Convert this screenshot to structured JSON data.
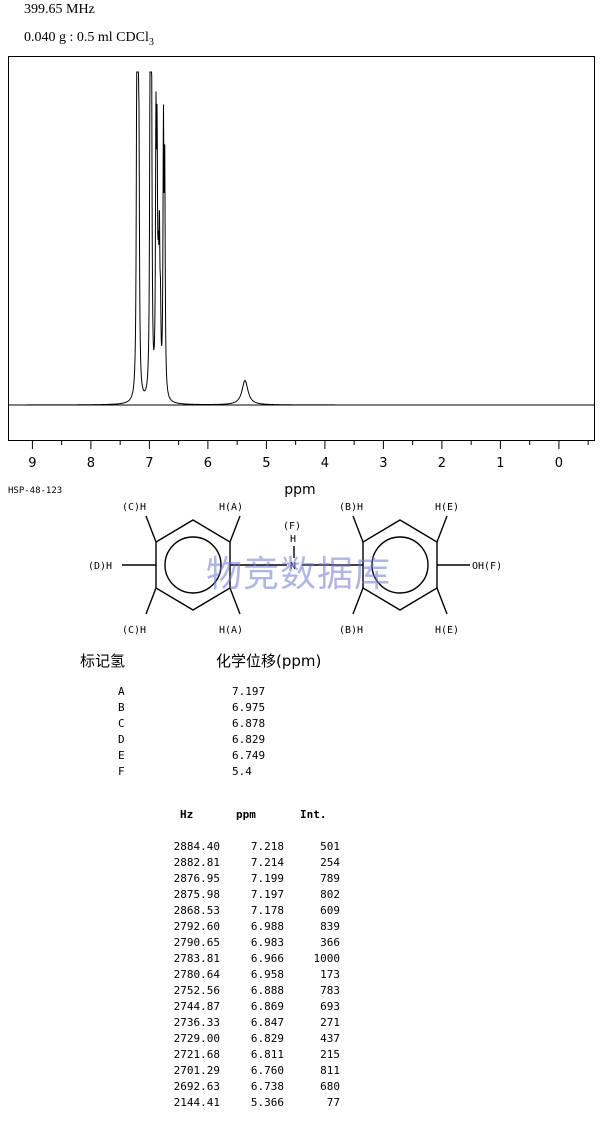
{
  "header": {
    "frequency": "399.65 MHz",
    "sample_main": "0.040 g : 0.5 ml CDCl",
    "sample_sub": "3"
  },
  "chart_data": {
    "type": "line",
    "xlabel": "ppm",
    "xlim": [
      9.4,
      -0.6
    ],
    "x_reversed": true,
    "x_ticks": [
      "9",
      "8",
      "7",
      "6",
      "5",
      "4",
      "3",
      "2",
      "1",
      "0"
    ],
    "peaks": [
      {
        "ppm": 7.218,
        "intensity": 501
      },
      {
        "ppm": 7.214,
        "intensity": 254
      },
      {
        "ppm": 7.199,
        "intensity": 789
      },
      {
        "ppm": 7.197,
        "intensity": 802
      },
      {
        "ppm": 7.178,
        "intensity": 609
      },
      {
        "ppm": 6.988,
        "intensity": 839
      },
      {
        "ppm": 6.983,
        "intensity": 366
      },
      {
        "ppm": 6.966,
        "intensity": 1000
      },
      {
        "ppm": 6.958,
        "intensity": 173
      },
      {
        "ppm": 6.888,
        "intensity": 783
      },
      {
        "ppm": 6.869,
        "intensity": 693
      },
      {
        "ppm": 6.847,
        "intensity": 271
      },
      {
        "ppm": 6.829,
        "intensity": 437
      },
      {
        "ppm": 6.811,
        "intensity": 215
      },
      {
        "ppm": 6.76,
        "intensity": 811
      },
      {
        "ppm": 6.738,
        "intensity": 680
      },
      {
        "ppm": 5.366,
        "intensity": 77
      }
    ]
  },
  "compound_code": "HSP-48-123",
  "structure": {
    "labels": {
      "c_top": "(C)H",
      "a_top": "H(A)",
      "d_left": "(D)H",
      "c_bottom": "(C)H",
      "a_bottom": "H(A)",
      "f_label": "(F)",
      "f_h": "H",
      "n": "N",
      "b_top": "(B)H",
      "e_top": "H(E)",
      "oh": "OH(F)",
      "b_bottom": "(B)H",
      "e_bottom": "H(E)"
    }
  },
  "watermark": "物竞数据库",
  "assignments": {
    "header_label": "标记氢",
    "header_shift": "化学位移(ppm)",
    "rows": [
      {
        "label": "A",
        "shift": "7.197"
      },
      {
        "label": "B",
        "shift": "6.975"
      },
      {
        "label": "C",
        "shift": "6.878"
      },
      {
        "label": "D",
        "shift": "6.829"
      },
      {
        "label": "E",
        "shift": "6.749"
      },
      {
        "label": "F",
        "shift": "5.4"
      }
    ]
  },
  "peak_table": {
    "headers": {
      "hz": "Hz",
      "ppm": "ppm",
      "int": "Int."
    },
    "rows": [
      {
        "hz": "2884.40",
        "ppm": "7.218",
        "int": "501"
      },
      {
        "hz": "2882.81",
        "ppm": "7.214",
        "int": "254"
      },
      {
        "hz": "2876.95",
        "ppm": "7.199",
        "int": "789"
      },
      {
        "hz": "2875.98",
        "ppm": "7.197",
        "int": "802"
      },
      {
        "hz": "2868.53",
        "ppm": "7.178",
        "int": "609"
      },
      {
        "hz": "2792.60",
        "ppm": "6.988",
        "int": "839"
      },
      {
        "hz": "2790.65",
        "ppm": "6.983",
        "int": "366"
      },
      {
        "hz": "2783.81",
        "ppm": "6.966",
        "int": "1000"
      },
      {
        "hz": "2780.64",
        "ppm": "6.958",
        "int": "173"
      },
      {
        "hz": "2752.56",
        "ppm": "6.888",
        "int": "783"
      },
      {
        "hz": "2744.87",
        "ppm": "6.869",
        "int": "693"
      },
      {
        "hz": "2736.33",
        "ppm": "6.847",
        "int": "271"
      },
      {
        "hz": "2729.00",
        "ppm": "6.829",
        "int": "437"
      },
      {
        "hz": "2721.68",
        "ppm": "6.811",
        "int": "215"
      },
      {
        "hz": "2701.29",
        "ppm": "6.760",
        "int": "811"
      },
      {
        "hz": "2692.63",
        "ppm": "6.738",
        "int": "680"
      },
      {
        "hz": "2144.41",
        "ppm": "5.366",
        "int": "77"
      }
    ]
  }
}
